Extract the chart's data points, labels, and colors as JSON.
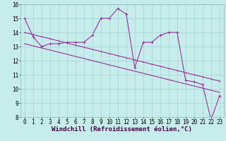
{
  "bg_color": "#c6eceb",
  "grid_color": "#a8d8d8",
  "line_color": "#993399",
  "x_hours": [
    0,
    1,
    2,
    3,
    4,
    5,
    6,
    7,
    8,
    9,
    10,
    11,
    12,
    13,
    14,
    15,
    16,
    17,
    18,
    19,
    20,
    21,
    22,
    23
  ],
  "y_zigzag": [
    15.0,
    13.7,
    13.0,
    13.2,
    13.2,
    13.3,
    13.3,
    13.3,
    13.8,
    15.0,
    15.0,
    15.7,
    15.3,
    11.5,
    13.3,
    13.3,
    13.8,
    14.0,
    14.0,
    10.6,
    10.5,
    10.3,
    7.8,
    9.5
  ],
  "y_trend1": [
    14.0,
    13.85,
    13.7,
    13.55,
    13.4,
    13.25,
    13.1,
    12.95,
    12.8,
    12.65,
    12.5,
    12.35,
    12.2,
    12.05,
    11.9,
    11.75,
    11.6,
    11.45,
    11.3,
    11.15,
    11.0,
    10.85,
    10.7,
    10.55
  ],
  "y_trend2": [
    13.2,
    13.05,
    12.9,
    12.75,
    12.6,
    12.45,
    12.3,
    12.15,
    12.0,
    11.85,
    11.7,
    11.55,
    11.4,
    11.25,
    11.1,
    10.95,
    10.8,
    10.65,
    10.5,
    10.35,
    10.2,
    10.05,
    9.9,
    9.75
  ],
  "ylim": [
    8,
    16
  ],
  "xlim": [
    -0.5,
    23.5
  ],
  "yticks": [
    8,
    9,
    10,
    11,
    12,
    13,
    14,
    15,
    16
  ],
  "xticks": [
    0,
    1,
    2,
    3,
    4,
    5,
    6,
    7,
    8,
    9,
    10,
    11,
    12,
    13,
    14,
    15,
    16,
    17,
    18,
    19,
    20,
    21,
    22,
    23
  ],
  "xlabel": "Windchill (Refroidissement éolien,°C)",
  "xlabel_fontsize": 6.5,
  "tick_fontsize": 5.5,
  "marker_size": 2.5,
  "linewidth": 0.8
}
